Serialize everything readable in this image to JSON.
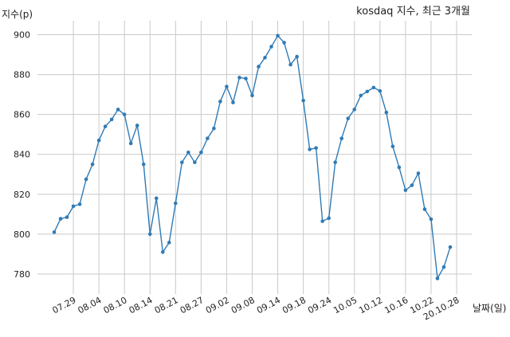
{
  "chart_data": {
    "type": "line",
    "title": "kosdaq 지수, 최근 3개월",
    "xlabel": "날짜(일)",
    "ylabel": "지수(p)",
    "ylim": [
      770,
      907
    ],
    "y_ticks": [
      780,
      800,
      820,
      840,
      860,
      880,
      900
    ],
    "x_tick_labels": [
      "07.29",
      "08.04",
      "08.10",
      "08.14",
      "08.21",
      "08.27",
      "09.02",
      "09.08",
      "09.14",
      "09.18",
      "09.24",
      "10.05",
      "10.12",
      "10.16",
      "10.22",
      "20.10.28"
    ],
    "x_tick_index": [
      3,
      7,
      11,
      15,
      19,
      23,
      27,
      31,
      35,
      39,
      43,
      47,
      51,
      55,
      59,
      63
    ],
    "grid": true,
    "series": [
      {
        "color": "#2f7bb6",
        "values": [
          801,
          807.7,
          808.5,
          814,
          815,
          827.5,
          835,
          847,
          854,
          857.5,
          862.5,
          860,
          845.5,
          854.5,
          835,
          800,
          818,
          791,
          795.8,
          815.5,
          836,
          841,
          836,
          841,
          848,
          853,
          866.5,
          874,
          866,
          878.5,
          878,
          869.5,
          884,
          888.5,
          894,
          899.5,
          896,
          885,
          889,
          867,
          842.5,
          843.2,
          806.5,
          808,
          836,
          848,
          858,
          862.5,
          869.5,
          871.5,
          873.5,
          871.8,
          861,
          844,
          833.5,
          822,
          824.5,
          830.5,
          812.5,
          807.5,
          777.8,
          783.5,
          793.5
        ]
      }
    ]
  }
}
